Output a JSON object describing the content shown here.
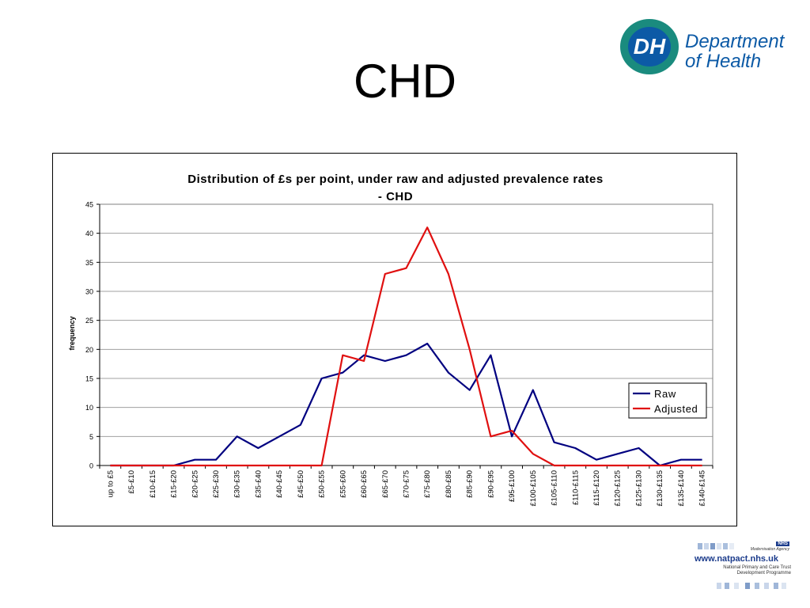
{
  "slide": {
    "title": "CHD"
  },
  "logo_dh": {
    "mark": "DH",
    "line1": "Department",
    "line2": "of Health"
  },
  "logo_natpact": {
    "badge": "NHS",
    "agency": "Modernisation Agency",
    "url": "www.natpact.nhs.uk",
    "sub1": "National Primary and Care Trust",
    "sub2": "Development Programme"
  },
  "chart_data": {
    "type": "line",
    "title": "Distribution of £s per point, under raw and adjusted prevalence rates - CHD",
    "title_line1": "Distribution of £s per point, under raw and adjusted prevalence rates",
    "title_line2": "- CHD",
    "xlabel": "",
    "ylabel": "frequency",
    "ylim": [
      0,
      45
    ],
    "yticks": [
      0,
      5,
      10,
      15,
      20,
      25,
      30,
      35,
      40,
      45
    ],
    "grid": true,
    "legend_position": "right",
    "categories": [
      "up to £5",
      "£5-£10",
      "£10-£15",
      "£15-£20",
      "£20-£25",
      "£25-£30",
      "£30-£35",
      "£35-£40",
      "£40-£45",
      "£45-£50",
      "£50-£55",
      "£55-£60",
      "£60-£65",
      "£65-£70",
      "£70-£75",
      "£75-£80",
      "£80-£85",
      "£85-£90",
      "£90-£95",
      "£95-£100",
      "£100-£105",
      "£105-£110",
      "£110-£115",
      "£115-£120",
      "£120-£125",
      "£125-£130",
      "£130-£135",
      "£135-£140",
      "£140-£145"
    ],
    "series": [
      {
        "name": "Raw",
        "color": "#000080",
        "values": [
          0,
          0,
          0,
          0,
          1,
          1,
          5,
          3,
          5,
          7,
          15,
          16,
          19,
          18,
          19,
          21,
          16,
          13,
          19,
          5,
          13,
          4,
          3,
          1,
          2,
          3,
          0,
          1,
          1
        ]
      },
      {
        "name": "Adjusted",
        "color": "#e01010",
        "values": [
          0,
          0,
          0,
          0,
          0,
          0,
          0,
          0,
          0,
          0,
          0,
          19,
          18,
          33,
          34,
          41,
          33,
          20,
          5,
          6,
          2,
          0,
          0,
          0,
          0,
          0,
          0,
          0,
          0
        ]
      }
    ]
  }
}
